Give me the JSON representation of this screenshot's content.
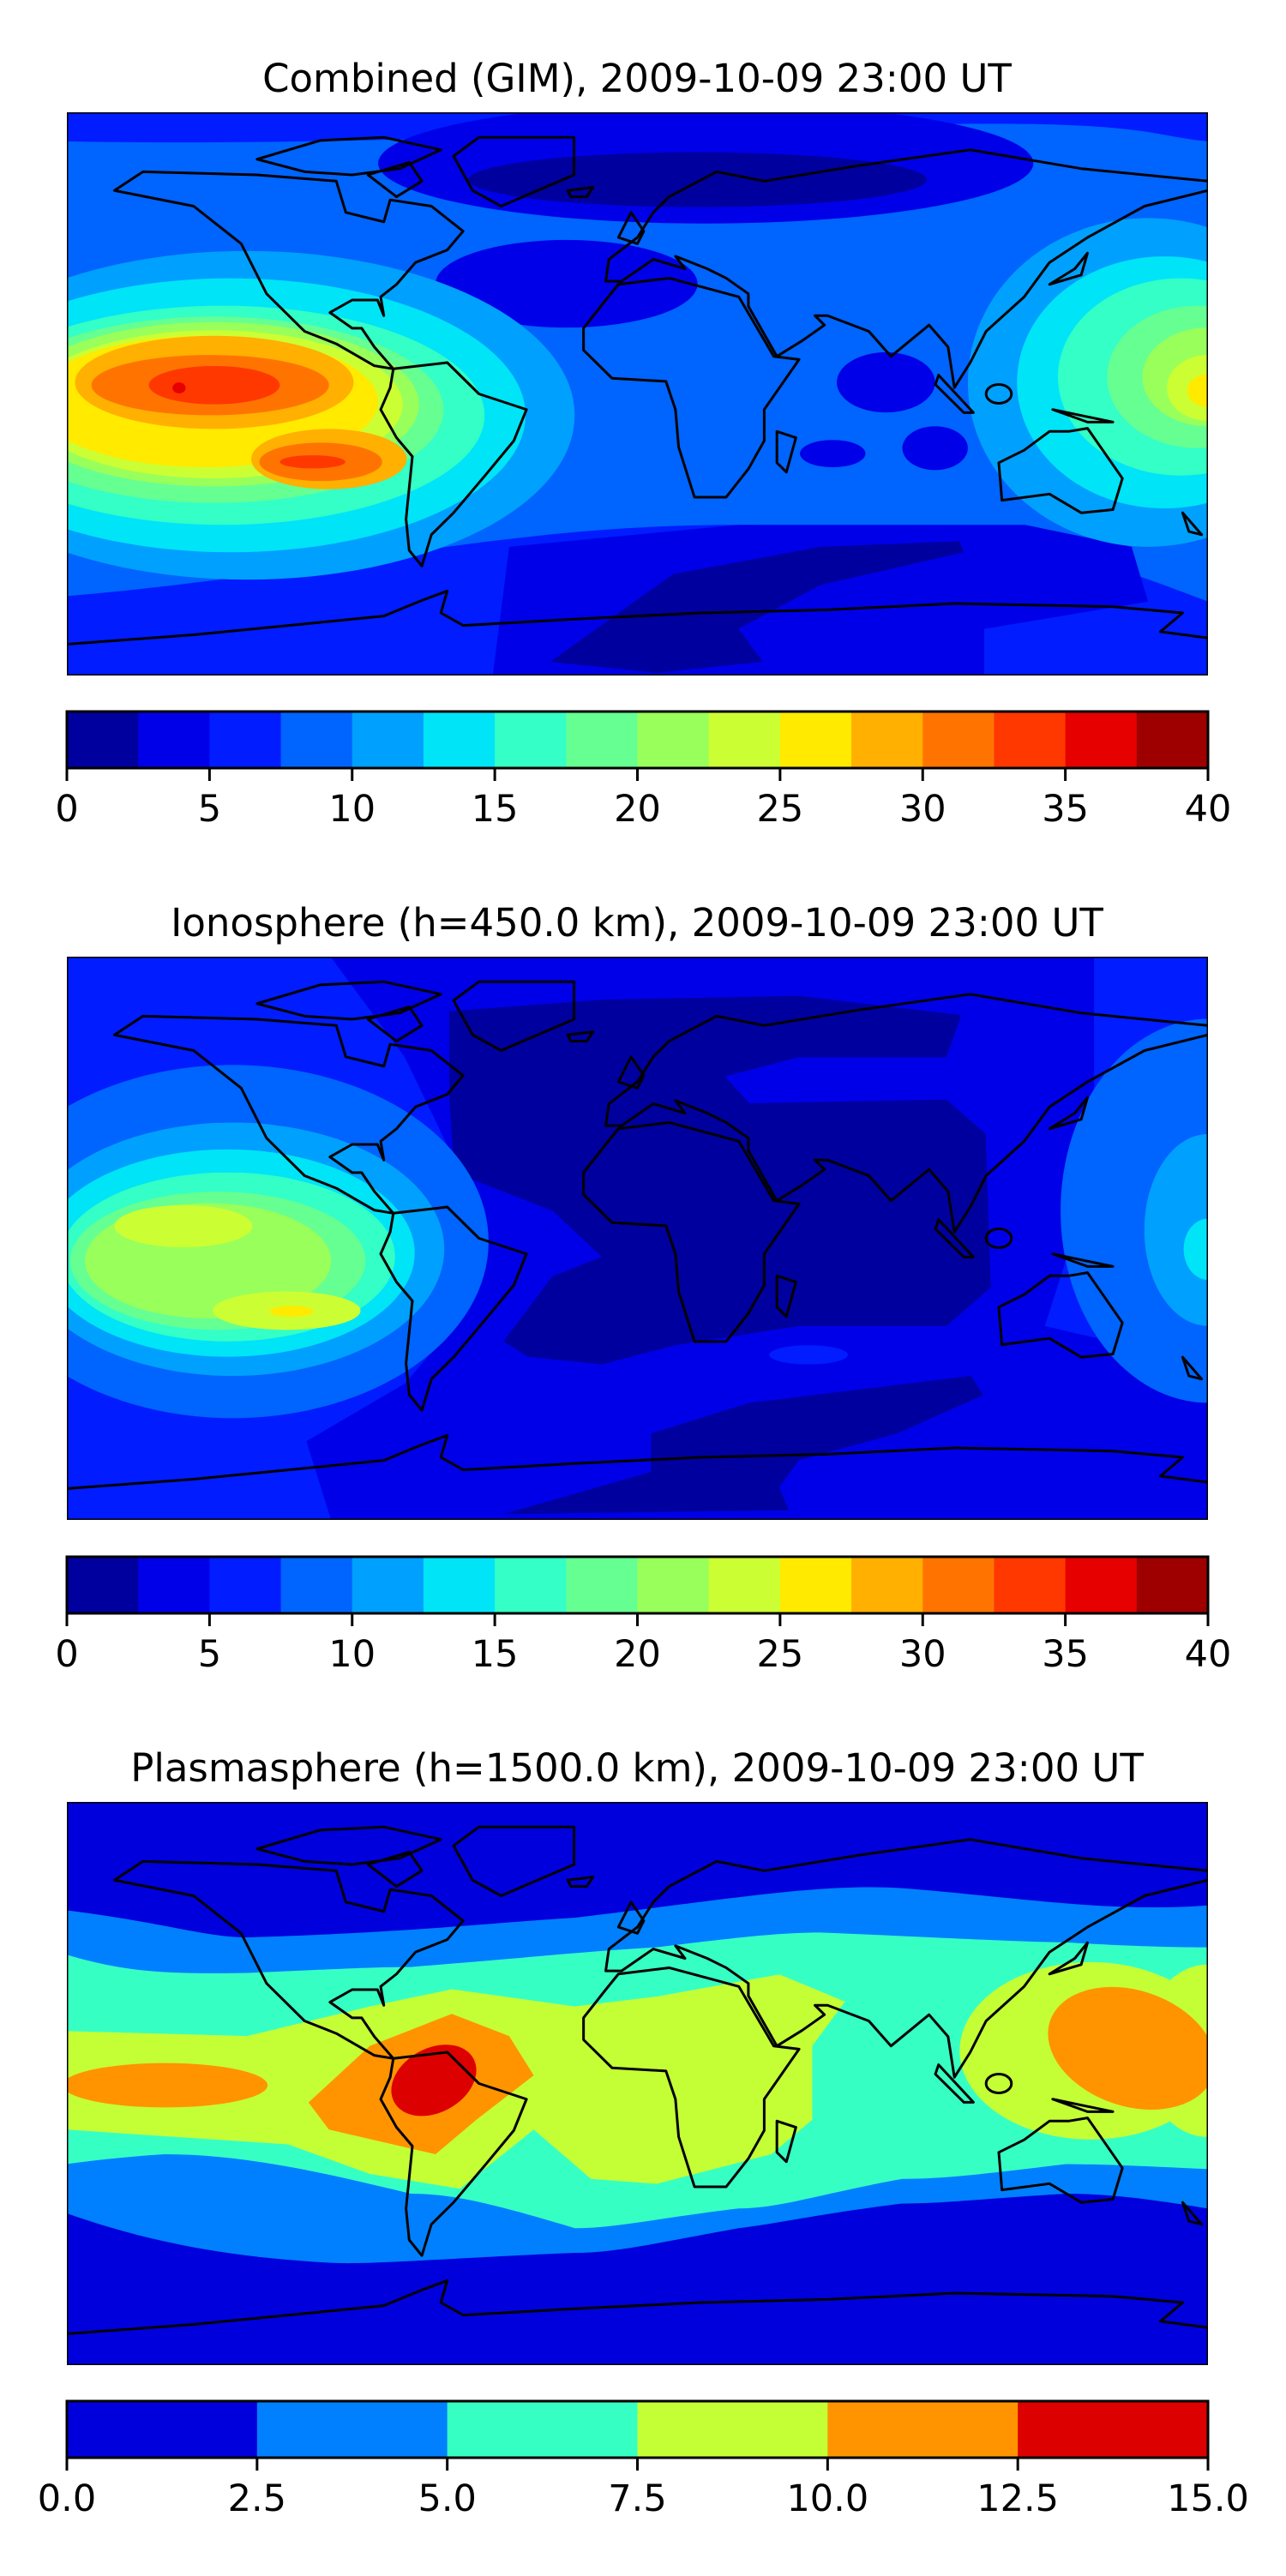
{
  "chart_data": [
    {
      "type": "heatmap",
      "title": "Combined (GIM), 2009-10-09 23:00 UT",
      "projection": "equirectangular world map with coastlines",
      "lon_range": [
        -180,
        180
      ],
      "lat_range": [
        -90,
        90
      ],
      "feature": "maximum near 30-37.5 over the eastern Pacific west of South America (two cores, ~10N and ~15S); secondary maximum ~25 at the western Pacific edge; minimum 0-2.5 over the North Atlantic and Southern Ocean",
      "colorbar": {
        "levels": [
          0,
          2.5,
          5,
          7.5,
          10,
          12.5,
          15,
          17.5,
          20,
          22.5,
          25,
          27.5,
          30,
          32.5,
          35,
          37.5,
          40
        ],
        "colors": [
          "#00009f",
          "#0000e8",
          "#001cff",
          "#0064ff",
          "#00a0ff",
          "#00e4f8",
          "#33ffc6",
          "#66ff92",
          "#99ff5a",
          "#ccff33",
          "#ffea00",
          "#ffb000",
          "#ff7400",
          "#ff3800",
          "#e60000",
          "#9e0000"
        ],
        "ticks": [
          0,
          5,
          10,
          15,
          20,
          25,
          30,
          35,
          40
        ],
        "tick_labels": [
          "0",
          "5",
          "10",
          "15",
          "20",
          "25",
          "30",
          "35",
          "40"
        ],
        "range": [
          0,
          40
        ]
      }
    },
    {
      "type": "heatmap",
      "title": "Ionosphere  (h=450.0 km), 2009-10-09 23:00 UT",
      "projection": "equirectangular world map with coastlines",
      "lon_range": [
        -180,
        180
      ],
      "lat_range": [
        -90,
        90
      ],
      "feature": "maximum ~22.5-27.5 over the eastern Pacific west of South America; 0-2.5 over the Atlantic, Africa and the Indian Ocean",
      "colorbar": {
        "levels": [
          0,
          2.5,
          5,
          7.5,
          10,
          12.5,
          15,
          17.5,
          20,
          22.5,
          25,
          27.5,
          30,
          32.5,
          35,
          37.5,
          40
        ],
        "colors": [
          "#00009f",
          "#0000e8",
          "#001cff",
          "#0064ff",
          "#00a0ff",
          "#00e4f8",
          "#33ffc6",
          "#66ff92",
          "#99ff5a",
          "#ccff33",
          "#ffea00",
          "#ffb000",
          "#ff7400",
          "#ff3800",
          "#e60000",
          "#9e0000"
        ],
        "ticks": [
          0,
          5,
          10,
          15,
          20,
          25,
          30,
          35,
          40
        ],
        "tick_labels": [
          "0",
          "5",
          "10",
          "15",
          "20",
          "25",
          "30",
          "35",
          "40"
        ],
        "range": [
          0,
          40
        ]
      }
    },
    {
      "type": "heatmap",
      "title": "Plasmasphere (h=1500.0 km), 2009-10-09 23:00 UT",
      "projection": "equirectangular world map with coastlines",
      "lon_range": [
        -180,
        180
      ],
      "lat_range": [
        -90,
        90
      ],
      "feature": "equatorial band 7.5-12.5 with a maximum of 12.5-15 over northern South America; 0-2.5 poleward of about 50 degrees",
      "colorbar": {
        "levels": [
          0,
          2.5,
          5,
          7.5,
          10,
          12.5,
          15
        ],
        "colors": [
          "#0000dd",
          "#0080ff",
          "#36ffc4",
          "#c4ff36",
          "#ff9400",
          "#dd0000"
        ],
        "ticks": [
          0,
          2.5,
          5,
          7.5,
          10,
          12.5,
          15
        ],
        "tick_labels": [
          "0.0",
          "2.5",
          "5.0",
          "7.5",
          "10.0",
          "12.5",
          "15.0"
        ],
        "range": [
          0,
          15
        ]
      }
    }
  ]
}
